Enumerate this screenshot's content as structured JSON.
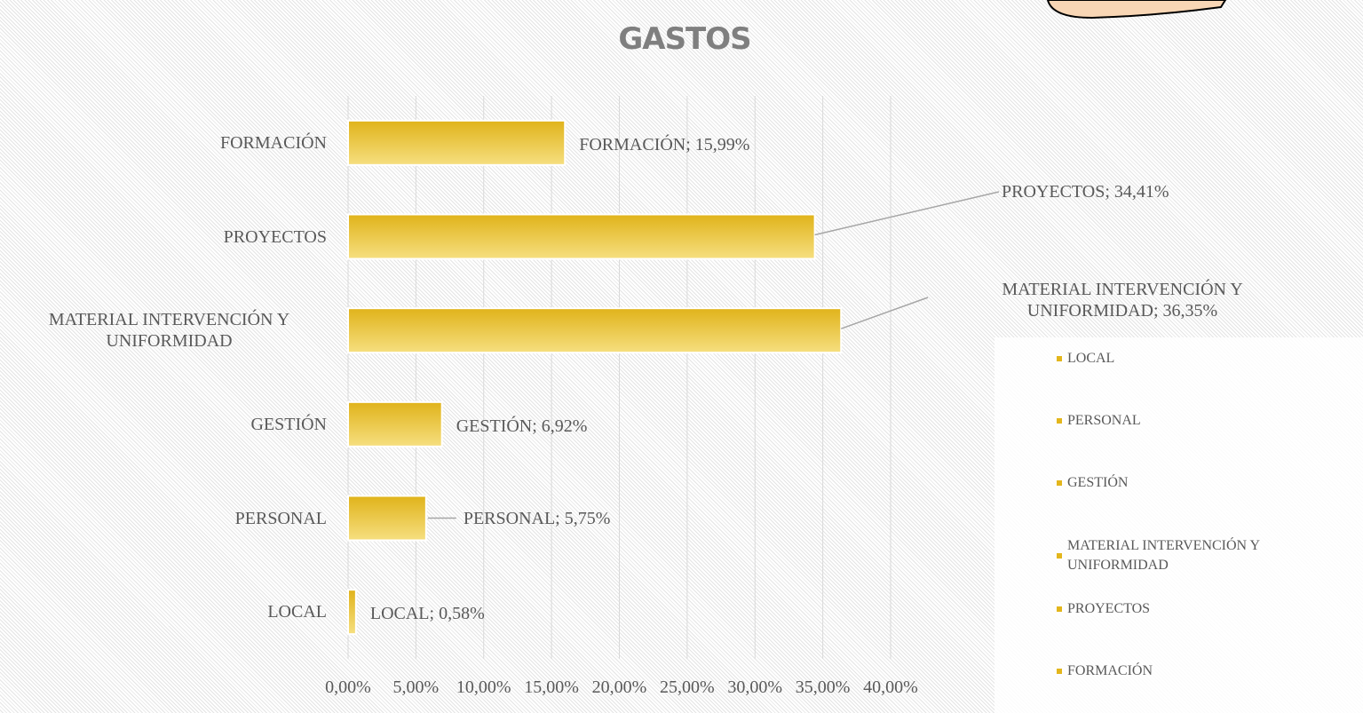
{
  "chart_data": {
    "type": "bar",
    "orientation": "horizontal",
    "title": "GASTOS",
    "categories": [
      "LOCAL",
      "PERSONAL",
      "GESTIÓN",
      "MATERIAL INTERVENCIÓN Y UNIFORMIDAD",
      "PROYECTOS",
      "FORMACIÓN"
    ],
    "values": [
      0.58,
      5.75,
      6.92,
      36.35,
      34.41,
      15.99
    ],
    "value_labels": [
      "LOCAL; 0,58%",
      "PERSONAL; 5,75%",
      "GESTIÓN; 6,92%",
      "MATERIAL INTERVENCIÓN Y UNIFORMIDAD; 36,35%",
      "PROYECTOS; 34,41%",
      "FORMACIÓN; 15,99%"
    ],
    "color": "#e3b61c",
    "xlim": [
      0,
      40
    ],
    "xticks": [
      {
        "value": 0,
        "label": "0,00%"
      },
      {
        "value": 5,
        "label": "5,00%"
      },
      {
        "value": 10,
        "label": "10,00%"
      },
      {
        "value": 15,
        "label": "15,00%"
      },
      {
        "value": 20,
        "label": "20,00%"
      },
      {
        "value": 25,
        "label": "25,00%"
      },
      {
        "value": 30,
        "label": "30,00%"
      },
      {
        "value": 35,
        "label": "35,00%"
      },
      {
        "value": 40,
        "label": "40,00%"
      }
    ],
    "grid": true,
    "legend": "right"
  }
}
